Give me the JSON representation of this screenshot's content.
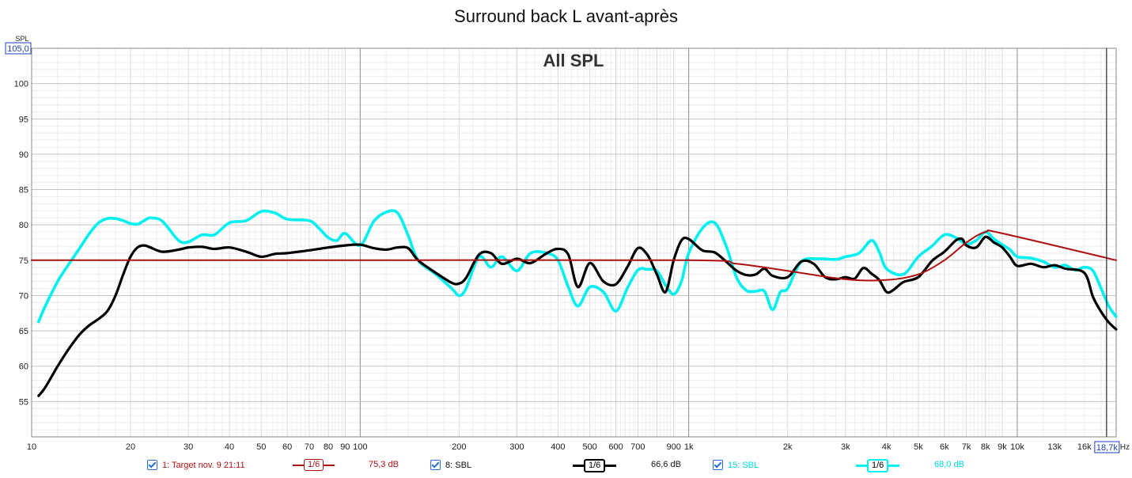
{
  "title": "Surround back L avant-après",
  "chart_data": {
    "type": "line",
    "title": "Surround back L avant-après",
    "annotation": "All SPL",
    "ylabel": "SPL",
    "xlabel": "Hz",
    "x_scale": "log",
    "xlim": [
      10,
      20000
    ],
    "ylim": [
      50,
      105
    ],
    "grid": true,
    "y_ticks": [
      55,
      60,
      65,
      70,
      75,
      80,
      85,
      90,
      95,
      100
    ],
    "x_ticks": [
      {
        "v": 10,
        "label": "10"
      },
      {
        "v": 20,
        "label": "20"
      },
      {
        "v": 30,
        "label": "30"
      },
      {
        "v": 40,
        "label": "40"
      },
      {
        "v": 50,
        "label": "50"
      },
      {
        "v": 60,
        "label": "60"
      },
      {
        "v": 70,
        "label": "70"
      },
      {
        "v": 80,
        "label": "80"
      },
      {
        "v": 90,
        "label": "90"
      },
      {
        "v": 100,
        "label": "100"
      },
      {
        "v": 200,
        "label": "200"
      },
      {
        "v": 300,
        "label": "300"
      },
      {
        "v": 400,
        "label": "400"
      },
      {
        "v": 500,
        "label": "500"
      },
      {
        "v": 600,
        "label": "600"
      },
      {
        "v": 700,
        "label": "700"
      },
      {
        "v": 900,
        "label": "900"
      },
      {
        "v": 1000,
        "label": "1k"
      },
      {
        "v": 2000,
        "label": "2k"
      },
      {
        "v": 3000,
        "label": "3k"
      },
      {
        "v": 4000,
        "label": "4k"
      },
      {
        "v": 5000,
        "label": "5k"
      },
      {
        "v": 6000,
        "label": "6k"
      },
      {
        "v": 7000,
        "label": "7k"
      },
      {
        "v": 8000,
        "label": "8k"
      },
      {
        "v": 9000,
        "label": "9k"
      },
      {
        "v": 10000,
        "label": "10k"
      },
      {
        "v": 13000,
        "label": "13k"
      },
      {
        "v": 16000,
        "label": "16k"
      }
    ],
    "top_cursor_label": "105,0",
    "right_cursor_label": "18,7k",
    "right_cursor_x": 18700,
    "series": [
      {
        "name": "1: Target nov. 9 21:11",
        "color": "#b01010",
        "smoothing": "1/6",
        "level": "75,3 dB",
        "x": [
          10,
          100,
          1000,
          1400,
          2000,
          3000,
          4000,
          5000,
          6000,
          7000,
          8000,
          9000,
          20000
        ],
        "y": [
          75,
          75,
          75,
          74.5,
          73.5,
          72.3,
          72.2,
          73,
          75,
          77.5,
          79,
          78.8,
          75
        ]
      },
      {
        "name": "8: SBL",
        "color": "#000000",
        "smoothing": "1/6",
        "level": "66,6 dB",
        "x": [
          10.5,
          11,
          12,
          13,
          14,
          15,
          16,
          17,
          18,
          19,
          20,
          21,
          22,
          23,
          25,
          28,
          30,
          33,
          36,
          40,
          45,
          50,
          55,
          60,
          70,
          80,
          90,
          100,
          110,
          120,
          130,
          140,
          150,
          170,
          190,
          200,
          210,
          230,
          250,
          270,
          300,
          330,
          370,
          400,
          430,
          460,
          500,
          550,
          600,
          650,
          700,
          750,
          800,
          850,
          900,
          950,
          1000,
          1100,
          1200,
          1300,
          1400,
          1500,
          1600,
          1700,
          1800,
          2000,
          2200,
          2400,
          2600,
          2800,
          3000,
          3200,
          3400,
          3600,
          3800,
          4000,
          4200,
          4500,
          5000,
          5500,
          6000,
          6500,
          6800,
          7000,
          7500,
          8000,
          8500,
          9000,
          9500,
          10000,
          11000,
          12000,
          13000,
          14000,
          16000,
          17000,
          18000,
          19000,
          20000
        ],
        "y": [
          55.8,
          57,
          60,
          62.5,
          64.5,
          65.8,
          66.7,
          67.8,
          70,
          73,
          75.5,
          76.8,
          77.1,
          76.8,
          76.2,
          76.5,
          76.8,
          76.9,
          76.6,
          76.8,
          76.2,
          75.5,
          75.9,
          76,
          76.4,
          76.8,
          77.1,
          77.2,
          76.7,
          76.5,
          76.8,
          76.7,
          75,
          73.2,
          71.8,
          71.7,
          72.5,
          75.8,
          76,
          74.5,
          75.2,
          74.6,
          76,
          76.6,
          75.8,
          71.2,
          74.6,
          72,
          71.6,
          74,
          76.7,
          75.7,
          73,
          70.5,
          75,
          77.8,
          78,
          76.4,
          76.1,
          74.8,
          73.5,
          72.9,
          73,
          73.8,
          72.8,
          72.6,
          74.8,
          74.5,
          72.6,
          72.3,
          72.6,
          72.4,
          73.9,
          73.1,
          72.2,
          70.5,
          70.8,
          71.9,
          72.6,
          74.9,
          76.2,
          77.8,
          78,
          77.1,
          76.8,
          78.3,
          77.5,
          76.8,
          75.5,
          74.2,
          74.5,
          74,
          74.3,
          73.8,
          73.2,
          69.8,
          67.7,
          66.2,
          65.2
        ]
      },
      {
        "name": "15: SBL",
        "color": "#00f0f0",
        "smoothing": "1/6",
        "level": "68,0 dB",
        "x": [
          10.5,
          11,
          12,
          13,
          14,
          15,
          16,
          17,
          18,
          19,
          20,
          21,
          22,
          23,
          25,
          28,
          30,
          33,
          36,
          40,
          45,
          50,
          55,
          60,
          70,
          75,
          80,
          85,
          90,
          100,
          110,
          120,
          130,
          140,
          150,
          170,
          190,
          200,
          210,
          230,
          250,
          270,
          300,
          330,
          370,
          400,
          430,
          460,
          500,
          550,
          600,
          650,
          700,
          750,
          800,
          850,
          900,
          950,
          1000,
          1100,
          1200,
          1300,
          1400,
          1500,
          1600,
          1700,
          1800,
          1900,
          2000,
          2200,
          2500,
          2800,
          3000,
          3300,
          3600,
          3800,
          4000,
          4500,
          5000,
          5500,
          6000,
          6500,
          7000,
          7500,
          8000,
          8500,
          9000,
          9500,
          10000,
          11000,
          12000,
          13000,
          14000,
          15000,
          16000,
          17000,
          18000,
          19000,
          20000
        ],
        "y": [
          66.3,
          68.5,
          72,
          74.5,
          76.7,
          78.8,
          80.3,
          80.9,
          80.9,
          80.6,
          80.2,
          80.1,
          80.6,
          81,
          80.5,
          77.8,
          77.6,
          78.6,
          78.6,
          80.3,
          80.6,
          81.9,
          81.7,
          80.8,
          80.6,
          79.5,
          78.2,
          77.8,
          78.8,
          77.1,
          80.5,
          81.8,
          81.7,
          78.5,
          75,
          73,
          71,
          70,
          71,
          75.5,
          74,
          75.5,
          73.5,
          76,
          76,
          75,
          71.2,
          68.5,
          71.2,
          70.5,
          67.8,
          71,
          73.6,
          73.7,
          73.5,
          71.5,
          70.2,
          72,
          76,
          79.5,
          80.3,
          77,
          72.5,
          70.7,
          70.6,
          70.6,
          68,
          70.5,
          71,
          74.8,
          75.2,
          75.1,
          75.5,
          76,
          77.8,
          76.2,
          73.8,
          73,
          75.5,
          77,
          78.6,
          78.2,
          77.3,
          77.8,
          79,
          78,
          77.2,
          76.5,
          75.5,
          75.3,
          74.8,
          74,
          74.3,
          73.6,
          74,
          73.5,
          71,
          68.5,
          67
        ]
      }
    ]
  }
}
